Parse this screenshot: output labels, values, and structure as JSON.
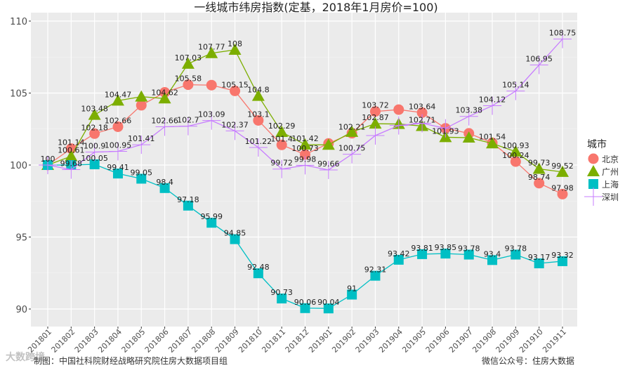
{
  "chart_data": {
    "type": "line",
    "title": "一线城市纬房指数(定基，2018年1月房价=100)",
    "xlabel": "",
    "ylabel": "",
    "ylim": [
      88.8,
      110.9
    ],
    "yticks": [
      90,
      95,
      100,
      105,
      110
    ],
    "grid": true,
    "legend_title": "城市",
    "legend_position": "right",
    "categories": [
      "201801",
      "201802",
      "201803",
      "201804",
      "201805",
      "201806",
      "201807",
      "201808",
      "201809",
      "201810",
      "201811",
      "201812",
      "201901",
      "201902",
      "201903",
      "201904",
      "201905",
      "201906",
      "201907",
      "201908",
      "201909",
      "201910",
      "201911"
    ],
    "series": [
      {
        "name": "北京",
        "color": "#F8766D",
        "marker": "circle",
        "values": [
          100,
          101.14,
          102.18,
          102.66,
          104.15,
          105.05,
          105.58,
          105.55,
          105.15,
          103.1,
          101.4,
          100.73,
          101.5,
          102.21,
          103.72,
          103.85,
          103.64,
          102.55,
          102.2,
          101.54,
          100.24,
          98.74,
          97.98
        ],
        "labels": [
          "",
          "101.14",
          "102.18",
          "102.66",
          "",
          "",
          "105.58",
          "",
          "105.15",
          "103.1",
          "101.4",
          "100.73",
          "",
          "102.21",
          "103.72",
          "",
          "103.64",
          "",
          "",
          "101.54",
          "100.24",
          "98.74",
          "97.98"
        ]
      },
      {
        "name": "广州",
        "color": "#7CAE00",
        "marker": "triangle",
        "values": [
          100,
          100.61,
          103.48,
          104.47,
          104.75,
          104.62,
          107.03,
          107.77,
          108,
          104.8,
          102.29,
          101.42,
          101.4,
          102.3,
          102.87,
          102.85,
          102.71,
          101.93,
          101.9,
          101.5,
          100.93,
          99.73,
          99.52
        ],
        "labels": [
          "",
          "100.61",
          "103.48",
          "104.47",
          "",
          "104.62",
          "107.03",
          "107.77",
          "108",
          "104.8",
          "102.29",
          "101.42",
          "",
          "",
          "102.87",
          "",
          "102.71",
          "101.93",
          "",
          "",
          "100.93",
          "99.73",
          "99.52"
        ]
      },
      {
        "name": "上海",
        "color": "#00BFC4",
        "marker": "square",
        "values": [
          100,
          100.0,
          100.05,
          99.41,
          99.05,
          98.4,
          97.18,
          95.99,
          94.85,
          92.48,
          90.73,
          90.06,
          90.04,
          91,
          92.31,
          93.42,
          93.81,
          93.85,
          93.78,
          93.4,
          93.78,
          93.17,
          93.32
        ],
        "labels": [
          "100",
          "",
          "100.05",
          "99.41",
          "99.05",
          "98.4",
          "97.18",
          "95.99",
          "94.85",
          "92.48",
          "90.73",
          "90.06",
          "90.04",
          "91",
          "92.31",
          "93.42",
          "93.81",
          "93.85",
          "93.78",
          "93.4",
          "93.78",
          "93.17",
          "93.32"
        ]
      },
      {
        "name": "深圳",
        "color": "#C77CFF",
        "marker": "plus",
        "values": [
          100,
          99.68,
          100.9,
          100.95,
          101.41,
          102.66,
          102.7,
          103.09,
          102.37,
          101.22,
          99.72,
          99.98,
          99.66,
          100.75,
          102.05,
          102.75,
          102.9,
          102.55,
          103.38,
          104.12,
          105.14,
          106.95,
          108.75
        ],
        "labels": [
          "",
          "99.68",
          "100.9",
          "100.95",
          "101.41",
          "102.66",
          "102.7",
          "103.09",
          "102.37",
          "101.22",
          "99.72",
          "99.98",
          "99.66",
          "100.75",
          "",
          "",
          "",
          "",
          "103.38",
          "104.12",
          "105.14",
          "106.95",
          "108.75"
        ]
      }
    ]
  },
  "footer": {
    "source": "制图：中国社科院财经战略研究院住房大数据项目组",
    "wechat": "微信公众号：住房大数据",
    "watermark": "大数跨境"
  }
}
